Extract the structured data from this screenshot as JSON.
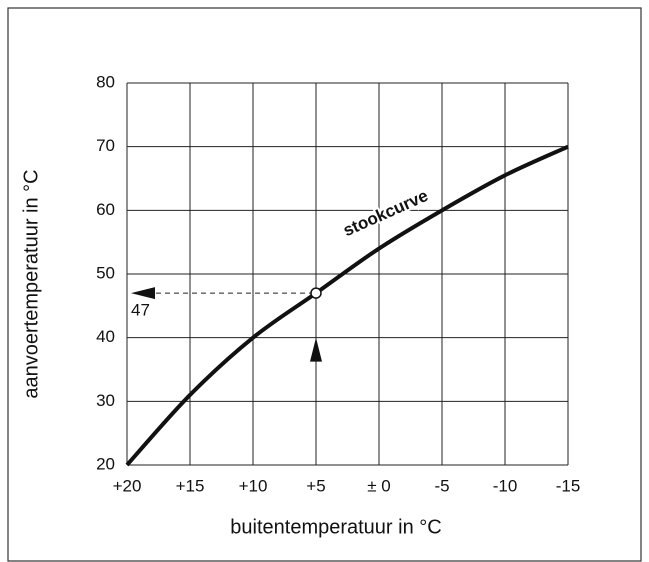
{
  "chart_data": {
    "type": "line",
    "xlabel": "buitentemperatuur in °C",
    "ylabel": "aanvoertemperatuur in °C",
    "curve_label": "stookcurve",
    "xlim": [
      20,
      -15
    ],
    "ylim": [
      20,
      80
    ],
    "xticks": [
      {
        "value": 20,
        "label": "+20"
      },
      {
        "value": 15,
        "label": "+15"
      },
      {
        "value": 10,
        "label": "+10"
      },
      {
        "value": 5,
        "label": "+5"
      },
      {
        "value": 0,
        "label": "± 0"
      },
      -5,
      -10,
      -15
    ],
    "yticks": [
      20,
      30,
      40,
      50,
      60,
      70,
      80
    ],
    "grid": true,
    "series": [
      {
        "color": "#111111",
        "x": [
          20,
          15,
          10,
          5,
          0,
          -5,
          -10,
          -15
        ],
        "values": [
          20,
          31,
          40,
          47,
          54,
          60,
          65.5,
          70
        ]
      }
    ],
    "marker": {
      "x": 5,
      "y": 47
    }
  }
}
